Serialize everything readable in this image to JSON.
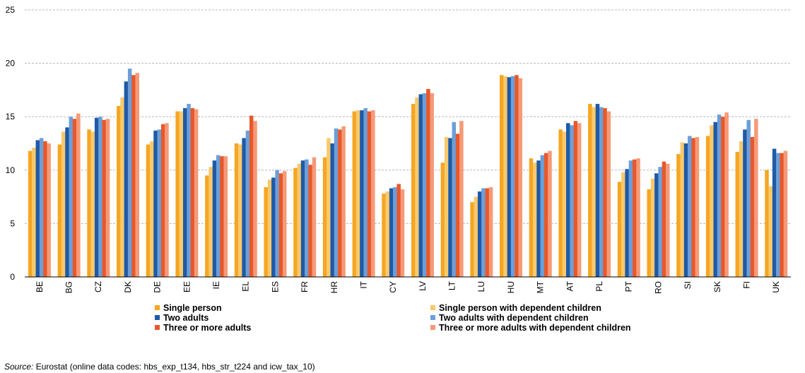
{
  "chart_data": {
    "type": "bar",
    "categories": [
      "BE",
      "BG",
      "CZ",
      "DK",
      "DE",
      "EE",
      "IE",
      "EL",
      "ES",
      "FR",
      "HR",
      "IT",
      "CY",
      "LV",
      "LT",
      "LU",
      "HU",
      "MT",
      "AT",
      "PL",
      "PT",
      "RO",
      "SI",
      "SK",
      "FI",
      "UK"
    ],
    "series": [
      {
        "name": "Single person",
        "color": "#f5a623",
        "values": [
          11.8,
          12.4,
          13.8,
          16.0,
          12.4,
          15.5,
          9.5,
          12.5,
          8.4,
          10.2,
          11.2,
          15.5,
          7.8,
          16.2,
          10.7,
          7.0,
          18.9,
          11.1,
          13.8,
          16.2,
          8.9,
          8.2,
          11.5,
          13.2,
          11.7,
          10.0
        ]
      },
      {
        "name": "Single person with dependent children",
        "color": "#f9c96c",
        "values": [
          12.1,
          13.6,
          13.6,
          16.8,
          12.7,
          15.5,
          10.3,
          12.4,
          9.1,
          10.6,
          13.0,
          15.6,
          8.0,
          16.8,
          13.1,
          7.5,
          18.8,
          10.7,
          13.6,
          15.9,
          9.8,
          9.2,
          12.6,
          14.2,
          12.7,
          8.5
        ]
      },
      {
        "name": "Two adults",
        "color": "#1f5aa6",
        "values": [
          12.8,
          14.0,
          14.9,
          18.3,
          13.7,
          15.8,
          10.9,
          13.0,
          9.3,
          10.9,
          12.5,
          15.6,
          8.3,
          17.1,
          13.0,
          8.0,
          18.7,
          10.9,
          14.4,
          16.2,
          10.1,
          9.7,
          12.5,
          14.5,
          13.8,
          12.0
        ]
      },
      {
        "name": "Two adults with dependent children",
        "color": "#6c9fd8",
        "values": [
          13.0,
          15.0,
          15.0,
          19.5,
          13.8,
          16.2,
          11.4,
          13.7,
          10.0,
          11.0,
          13.9,
          15.8,
          8.4,
          17.2,
          14.5,
          8.3,
          18.8,
          11.4,
          14.2,
          15.9,
          10.9,
          10.3,
          13.2,
          15.2,
          14.7,
          11.6
        ]
      },
      {
        "name": "Three or more adults",
        "color": "#e8582a",
        "values": [
          12.7,
          14.8,
          14.7,
          18.9,
          14.3,
          15.8,
          11.3,
          15.1,
          9.7,
          10.5,
          13.8,
          15.5,
          8.7,
          17.6,
          13.4,
          8.3,
          18.9,
          11.6,
          14.6,
          15.8,
          11.0,
          10.8,
          13.0,
          15.0,
          13.1,
          11.6
        ]
      },
      {
        "name": "Three or more adults with dependent children",
        "color": "#f59a78",
        "values": [
          12.5,
          15.3,
          14.8,
          19.1,
          14.4,
          15.7,
          11.3,
          14.6,
          9.9,
          11.2,
          14.1,
          15.6,
          8.2,
          17.2,
          14.6,
          8.4,
          18.6,
          11.8,
          14.4,
          15.5,
          11.1,
          10.6,
          13.1,
          15.4,
          14.8,
          11.8
        ]
      }
    ],
    "xlabel": "",
    "ylabel": "",
    "ylim": [
      0,
      25
    ],
    "yticks": [
      0,
      5,
      10,
      15,
      20,
      25
    ],
    "grid": true,
    "legend_position": "bottom"
  },
  "source": {
    "key": "Source:",
    "text": " Eurostat (online data codes: hbs_exp_t134, hbs_str_t224 and icw_tax_10)"
  }
}
